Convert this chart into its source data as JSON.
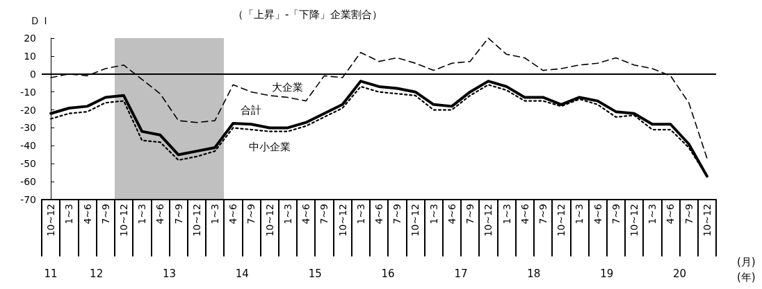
{
  "chart_data": {
    "type": "line",
    "title": "（「上昇」-「下降」企業割合）",
    "ylabel": "ＤＩ",
    "xlabel": "(月)",
    "categories": [
      "10~12",
      "1~3",
      "4~6",
      "7~9",
      "10~12",
      "1~3",
      "4~6",
      "7~9",
      "10~12",
      "1~3",
      "4~6",
      "7~9",
      "10~12",
      "1~3",
      "4~6",
      "7~9",
      "10~12",
      "1~3",
      "4~6",
      "7~9",
      "10~12",
      "1~3",
      "4~6",
      "7~9",
      "10~12",
      "1~3",
      "4~6",
      "7~9",
      "10~12",
      "1~3",
      "4~6",
      "7~9",
      "10~12",
      "1~3",
      "4~6",
      "7~9",
      "10~12"
    ],
    "series": [
      {
        "name": "大企業",
        "color": "#000000",
        "line_style": "dashed",
        "values": [
          -2,
          0,
          -1,
          3,
          5,
          -3,
          -11,
          -26,
          -27,
          -26,
          -6,
          -10,
          -12,
          -13,
          -15,
          -1,
          -2,
          12,
          7,
          9,
          6,
          2,
          6,
          7,
          20,
          11,
          9,
          2,
          3,
          5,
          6,
          9,
          5,
          3,
          -1,
          -16,
          -47
        ]
      },
      {
        "name": "合計",
        "color": "#000000",
        "line_style": "solid",
        "values": [
          -22,
          -19,
          -18,
          -13,
          -12,
          -32,
          -34,
          -45,
          -43,
          -41,
          -27.5,
          -28,
          -30,
          -30,
          -27,
          -22,
          -17,
          -4,
          -7,
          -8,
          -10,
          -17,
          -18,
          -10,
          -4,
          -7,
          -13,
          -13,
          -17,
          -13,
          -15,
          -21,
          -22,
          -28,
          -28,
          -39,
          -57
        ]
      },
      {
        "name": "中小企業",
        "color": "#000000",
        "line_style": "dotted",
        "values": [
          -25,
          -22,
          -21,
          -16,
          -15,
          -37,
          -38,
          -48,
          -46,
          -43,
          -30,
          -31,
          -32,
          -32,
          -29,
          -24,
          -19,
          -7,
          -10,
          -11,
          -12,
          -20,
          -20,
          -12,
          -6,
          -9,
          -15,
          -15,
          -18,
          -14,
          -17,
          -24,
          -23,
          -31,
          -31,
          -41,
          -57
        ]
      }
    ],
    "ylim": [
      -70,
      20
    ],
    "yticks": [
      -70,
      -60,
      -50,
      -40,
      -30,
      -20,
      -10,
      0,
      10,
      20
    ],
    "grid": false,
    "legend": false,
    "marker": "none",
    "ref_lines": [
      {
        "axis": "y",
        "value": 0,
        "color": "#000000",
        "line_style": "solid"
      }
    ],
    "annotations": [
      "11",
      "12",
      "13",
      "14",
      "15",
      "16",
      "17",
      "18",
      "19",
      "20",
      "(年)"
    ]
  }
}
